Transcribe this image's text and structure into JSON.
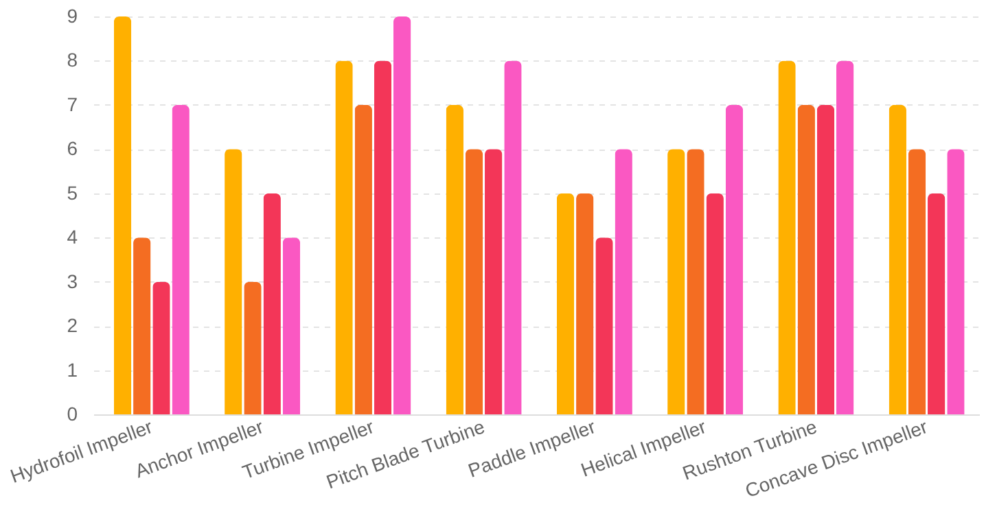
{
  "chart_data": {
    "type": "bar",
    "categories": [
      "Hydrofoil Impeller",
      "Anchor Impeller",
      "Turbine Impeller",
      "Pitch Blade Turbine",
      "Paddle Impeller",
      "Helical Impeller",
      "Rushton Turbine",
      "Concave Disc Impeller"
    ],
    "series": [
      {
        "color": "#ffb000",
        "values": [
          9,
          6,
          8,
          7,
          5,
          6,
          8,
          7
        ]
      },
      {
        "color": "#f46d22",
        "values": [
          4,
          3,
          7,
          6,
          5,
          6,
          7,
          6
        ]
      },
      {
        "color": "#f33658",
        "values": [
          3,
          5,
          8,
          6,
          4,
          5,
          7,
          5
        ]
      },
      {
        "color": "#fa58c2",
        "values": [
          7,
          4,
          9,
          8,
          6,
          7,
          8,
          6
        ]
      }
    ],
    "ylim": [
      0,
      9
    ],
    "yticks": [
      0,
      1,
      2,
      3,
      4,
      5,
      6,
      7,
      8,
      9
    ],
    "grid": "y",
    "legend": false
  }
}
